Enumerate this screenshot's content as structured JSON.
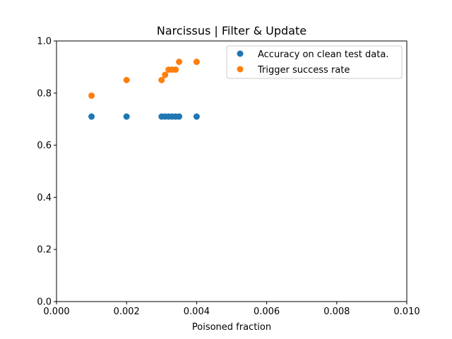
{
  "chart_data": {
    "type": "scatter",
    "title": "Narcissus | Filter & Update",
    "xlabel": "Poisoned fraction",
    "ylabel": "",
    "xlim": [
      0.0,
      0.01
    ],
    "ylim": [
      0.0,
      1.0
    ],
    "xticks": [
      "0.000",
      "0.002",
      "0.004",
      "0.006",
      "0.008",
      "0.010"
    ],
    "yticks": [
      "0.0",
      "0.2",
      "0.4",
      "0.6",
      "0.8",
      "1.0"
    ],
    "grid": false,
    "legend_position": "top-right",
    "series": [
      {
        "name": "Accuracy on clean test data.",
        "color": "#1f77b4",
        "x": [
          0.001,
          0.002,
          0.003,
          0.0031,
          0.0032,
          0.0033,
          0.0034,
          0.0035,
          0.004
        ],
        "y": [
          0.71,
          0.71,
          0.71,
          0.71,
          0.71,
          0.71,
          0.71,
          0.71,
          0.71
        ]
      },
      {
        "name": "Trigger success rate",
        "color": "#ff7f0e",
        "x": [
          0.001,
          0.002,
          0.003,
          0.0031,
          0.0032,
          0.0033,
          0.0034,
          0.0035,
          0.004
        ],
        "y": [
          0.79,
          0.85,
          0.85,
          0.87,
          0.89,
          0.89,
          0.89,
          0.92,
          0.92
        ]
      }
    ]
  }
}
